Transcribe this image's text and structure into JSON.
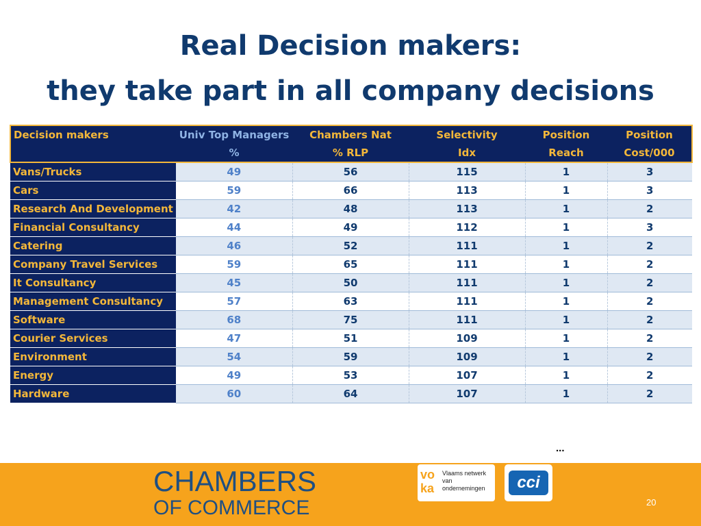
{
  "title": {
    "line1": "Real Decision makers:",
    "line2": "they take part in all company decisions"
  },
  "table": {
    "headers": [
      {
        "line1": "Decision makers",
        "line2": ""
      },
      {
        "line1": "Univ Top Managers",
        "line2": "%"
      },
      {
        "line1": "Chambers Nat",
        "line2": "% RLP"
      },
      {
        "line1": "Selectivity",
        "line2": "Idx"
      },
      {
        "line1": "Position",
        "line2": "Reach"
      },
      {
        "line1": "Position",
        "line2": "Cost/000"
      }
    ],
    "rows": [
      [
        "Vans/Trucks",
        "49",
        "56",
        "115",
        "1",
        "3"
      ],
      [
        "Cars",
        "59",
        "66",
        "113",
        "1",
        "3"
      ],
      [
        "Research And Development",
        "42",
        "48",
        "113",
        "1",
        "2"
      ],
      [
        "Financial Consultancy",
        "44",
        "49",
        "112",
        "1",
        "3"
      ],
      [
        "Catering",
        "46",
        "52",
        "111",
        "1",
        "2"
      ],
      [
        "Company Travel Services",
        "59",
        "65",
        "111",
        "1",
        "2"
      ],
      [
        "It Consultancy",
        "45",
        "50",
        "111",
        "1",
        "2"
      ],
      [
        "Management Consultancy",
        "57",
        "63",
        "111",
        "1",
        "2"
      ],
      [
        "Software",
        "68",
        "75",
        "111",
        "1",
        "2"
      ],
      [
        "Courier Services",
        "47",
        "51",
        "109",
        "1",
        "2"
      ],
      [
        "Environment",
        "54",
        "59",
        "109",
        "1",
        "2"
      ],
      [
        "Energy",
        "49",
        "53",
        "107",
        "1",
        "2"
      ],
      [
        "Hardware",
        "60",
        "64",
        "107",
        "1",
        "2"
      ]
    ]
  },
  "ellipsis": "...",
  "footer": {
    "chambers_line1": "CHAMBERS",
    "chambers_line2": "OF COMMERCE",
    "voka_mark": "vo ka",
    "voka_text": "Vlaams netwerk van ondernemingen",
    "cci_text": "cci",
    "page_number": "20"
  },
  "colors": {
    "navy": "#0c2260",
    "gold": "#f3b73a",
    "title_blue": "#103a6e",
    "footer_orange": "#f6a31c"
  }
}
